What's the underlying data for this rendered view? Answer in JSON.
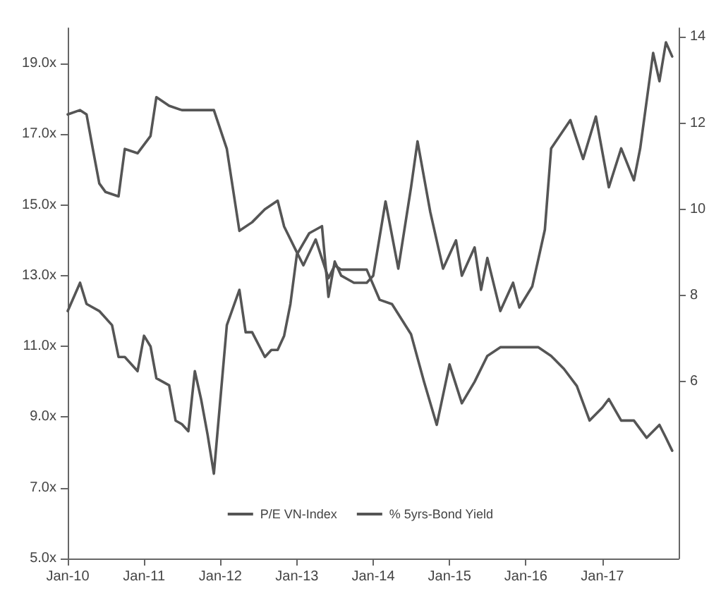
{
  "chart_data": {
    "type": "line",
    "xlim": [
      "2010-01",
      "2018-01"
    ],
    "xticks": [
      {
        "value": "2010-01",
        "label": "Jan-10"
      },
      {
        "value": "2011-01",
        "label": "Jan-11"
      },
      {
        "value": "2012-01",
        "label": "Jan-12"
      },
      {
        "value": "2013-01",
        "label": "Jan-13"
      },
      {
        "value": "2014-01",
        "label": "Jan-14"
      },
      {
        "value": "2015-01",
        "label": "Jan-15"
      },
      {
        "value": "2016-01",
        "label": "Jan-16"
      },
      {
        "value": "2017-01",
        "label": "Jan-17"
      }
    ],
    "ylim": [
      5,
      20
    ],
    "yticks": [
      {
        "value": 5,
        "label": "5.0x"
      },
      {
        "value": 7,
        "label": "7.0x"
      },
      {
        "value": 9,
        "label": "9.0x"
      },
      {
        "value": 11,
        "label": "11.0x"
      },
      {
        "value": 13,
        "label": "13.0x"
      },
      {
        "value": 15,
        "label": "15.0x"
      },
      {
        "value": 17,
        "label": "17.0x"
      },
      {
        "value": 19,
        "label": "19.0x"
      }
    ],
    "y2lim": [
      1.9,
      14.2
    ],
    "y2ticks": [
      6,
      8,
      10,
      12,
      14
    ],
    "grid": false,
    "legend": "bottom",
    "marker": "none",
    "line_style": "solid",
    "series": [
      {
        "name": "P/E VN-Index",
        "color": "#555555",
        "x": [
          "2010-01",
          "2010-03",
          "2010-04",
          "2010-06",
          "2010-08",
          "2010-09",
          "2010-10",
          "2010-12",
          "2011-01",
          "2011-02",
          "2011-03",
          "2011-05",
          "2011-06",
          "2011-07",
          "2011-08",
          "2011-09",
          "2011-10",
          "2011-11",
          "2011-12",
          "2012-02",
          "2012-04",
          "2012-05",
          "2012-06",
          "2012-08",
          "2012-09",
          "2012-10",
          "2012-11",
          "2012-12",
          "2013-01",
          "2013-03",
          "2013-05",
          "2013-06",
          "2013-07",
          "2013-08",
          "2013-10",
          "2013-12",
          "2014-01",
          "2014-03",
          "2014-05",
          "2014-07",
          "2014-08",
          "2014-10",
          "2014-12",
          "2015-02",
          "2015-03",
          "2015-05",
          "2015-06",
          "2015-07",
          "2015-09",
          "2015-11",
          "2015-12",
          "2016-02",
          "2016-04",
          "2016-05",
          "2016-08",
          "2016-10",
          "2016-12",
          "2017-02",
          "2017-04",
          "2017-06",
          "2017-07",
          "2017-09",
          "2017-10",
          "2017-11",
          "2017-12"
        ],
        "values": [
          12.0,
          12.8,
          12.2,
          12.0,
          11.6,
          10.7,
          10.7,
          10.3,
          11.3,
          11.0,
          10.1,
          9.9,
          8.9,
          8.8,
          8.6,
          10.3,
          9.5,
          8.5,
          7.4,
          11.6,
          12.6,
          11.4,
          11.4,
          10.7,
          10.9,
          10.9,
          11.3,
          12.2,
          13.6,
          14.2,
          14.4,
          12.4,
          13.4,
          13.0,
          12.8,
          12.8,
          13.0,
          15.1,
          13.2,
          15.5,
          16.8,
          14.8,
          13.2,
          14.0,
          13.0,
          13.8,
          12.6,
          13.5,
          12.0,
          12.8,
          12.1,
          12.7,
          14.3,
          16.6,
          17.4,
          16.3,
          17.5,
          15.5,
          16.6,
          15.7,
          16.6,
          19.3,
          18.5,
          19.6,
          19.2
        ]
      },
      {
        "name": "% 5yrs-Bond Yield",
        "color": "#555555",
        "axis": "y2",
        "x": [
          "2010-01",
          "2010-03",
          "2010-04",
          "2010-05",
          "2010-06",
          "2010-07",
          "2010-09",
          "2010-10",
          "2010-12",
          "2011-02",
          "2011-03",
          "2011-05",
          "2011-07",
          "2011-10",
          "2011-12",
          "2012-02",
          "2012-04",
          "2012-06",
          "2012-08",
          "2012-10",
          "2012-11",
          "2013-01",
          "2013-02",
          "2013-04",
          "2013-06",
          "2013-07",
          "2013-08",
          "2013-12",
          "2014-02",
          "2014-04",
          "2014-07",
          "2014-09",
          "2014-11",
          "2015-01",
          "2015-03",
          "2015-05",
          "2015-07",
          "2015-09",
          "2016-03",
          "2016-05",
          "2016-07",
          "2016-09",
          "2016-11",
          "2017-01",
          "2017-02",
          "2017-04",
          "2017-06",
          "2017-08",
          "2017-10",
          "2017-11",
          "2017-12"
        ],
        "values": [
          12.2,
          12.3,
          12.2,
          11.4,
          10.6,
          10.4,
          10.3,
          11.4,
          11.3,
          11.7,
          12.6,
          12.4,
          12.3,
          12.3,
          12.3,
          11.4,
          9.5,
          9.7,
          10.0,
          10.2,
          9.6,
          9.0,
          8.7,
          9.3,
          8.4,
          8.7,
          8.6,
          8.6,
          7.9,
          7.8,
          7.1,
          6.0,
          5.0,
          6.4,
          5.5,
          6.0,
          6.6,
          6.8,
          6.8,
          6.6,
          6.3,
          5.9,
          5.1,
          5.4,
          5.6,
          5.1,
          5.1,
          4.7,
          5.0,
          4.7,
          4.4
        ]
      }
    ]
  }
}
